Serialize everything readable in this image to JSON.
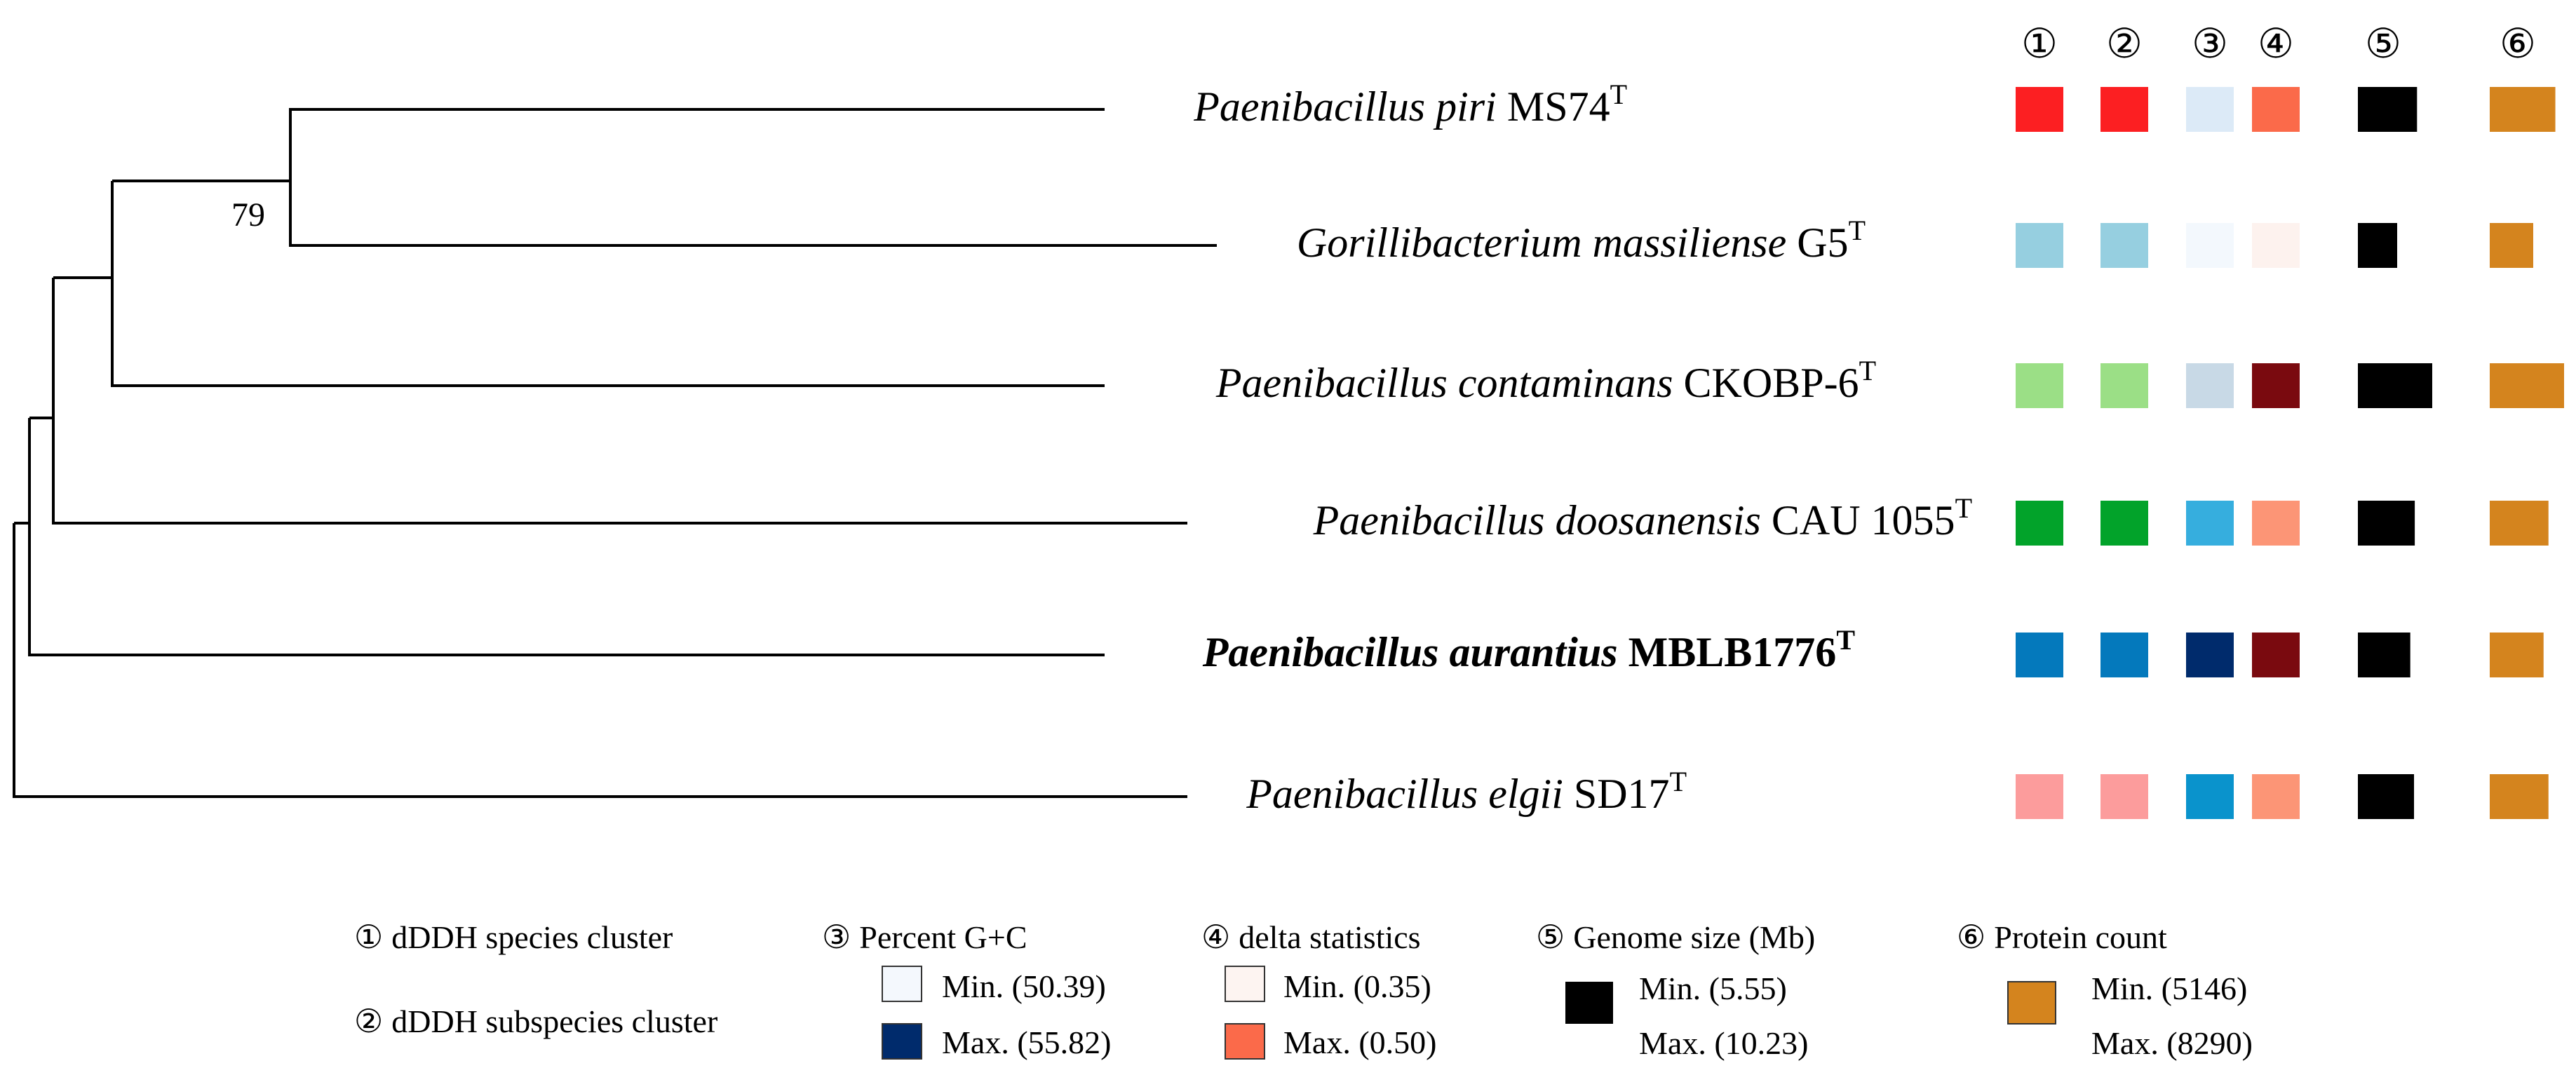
{
  "colors": {
    "branch": "#000000",
    "genome_box": "#000000",
    "protein_box": "#D4841E"
  },
  "column_headers": [
    "①",
    "②",
    "③",
    "④",
    "⑤",
    "⑥"
  ],
  "bootstrap": "79",
  "taxa": [
    {
      "genus": "Paenibacillus",
      "species": "piri",
      "strain": "MS74",
      "sup": "T",
      "bold": false,
      "species_cluster_color": "#FC1F22",
      "subspecies_cluster_color": "#FC1F22",
      "gc_color": "#DCEAF7",
      "delta_color": "#FB6A4A",
      "genome_size_mb": 8.2,
      "protein_count": 7400
    },
    {
      "genus": "Gorillibacterium",
      "species": "massiliense",
      "strain": "G5",
      "sup": "T",
      "bold": false,
      "species_cluster_color": "#96CFE0",
      "subspecies_cluster_color": "#96CFE0",
      "gc_color": "#F3F8FD",
      "delta_color": "#FDF2EE",
      "genome_size_mb": 5.55,
      "protein_count": 5146
    },
    {
      "genus": "Paenibacillus",
      "species": "contaminans",
      "strain": "CKOBP-6",
      "sup": "T",
      "bold": false,
      "species_cluster_color": "#9BDF86",
      "subspecies_cluster_color": "#9BDF86",
      "gc_color": "#C8D9E6",
      "delta_color": "#7A0A0F",
      "genome_size_mb": 10.23,
      "protein_count": 8290
    },
    {
      "genus": "Paenibacillus",
      "species": "doosanensis",
      "strain": "CAU 1055",
      "sup": "T",
      "bold": false,
      "species_cluster_color": "#02A32A",
      "subspecies_cluster_color": "#02A32A",
      "gc_color": "#36AEDE",
      "delta_color": "#FC9576",
      "genome_size_mb": 7.9,
      "protein_count": 6700
    },
    {
      "genus": "Paenibacillus",
      "species": "aurantius",
      "strain": "MBLB1776",
      "sup": "T",
      "bold": true,
      "species_cluster_color": "#0479BC",
      "subspecies_cluster_color": "#0479BC",
      "gc_color": "#002B6C",
      "delta_color": "#7A0A0F",
      "genome_size_mb": 7.3,
      "protein_count": 6200
    },
    {
      "genus": "Paenibacillus",
      "species": "elgii",
      "strain": "SD17",
      "sup": "T",
      "bold": false,
      "species_cluster_color": "#FC9C9C",
      "subspecies_cluster_color": "#FC9C9C",
      "gc_color": "#0A93CC",
      "delta_color": "#FC9576",
      "genome_size_mb": 7.8,
      "protein_count": 6700
    }
  ],
  "legend": {
    "species_cluster": {
      "marker": "①",
      "label": "dDDH species cluster"
    },
    "subspecies_cluster": {
      "marker": "②",
      "label": "dDDH subspecies cluster"
    },
    "gc": {
      "marker": "③",
      "label": "Percent G+C",
      "min_label": "Min. (50.39)",
      "max_label": "Max. (55.82)",
      "min_color": "#F4F8FD",
      "max_color": "#002B6C",
      "min": 50.39,
      "max": 55.82
    },
    "delta": {
      "marker": "④",
      "label": "delta statistics",
      "min_label": "Min. (0.35)",
      "max_label": "Max. (0.50)",
      "min_color": "#FDF4F1",
      "max_color": "#FB6A4A",
      "min": 0.35,
      "max": 0.5
    },
    "genome": {
      "marker": "⑤",
      "label": "Genome size (Mb)",
      "min_label": "Min. (5.55)",
      "max_label": "Max. (10.23)",
      "min": 5.55,
      "max": 10.23
    },
    "protein": {
      "marker": "⑥",
      "label": "Protein count",
      "min_label": "Min. (5146)",
      "max_label": "Max. (8290)",
      "min": 5146,
      "max": 8290
    }
  }
}
